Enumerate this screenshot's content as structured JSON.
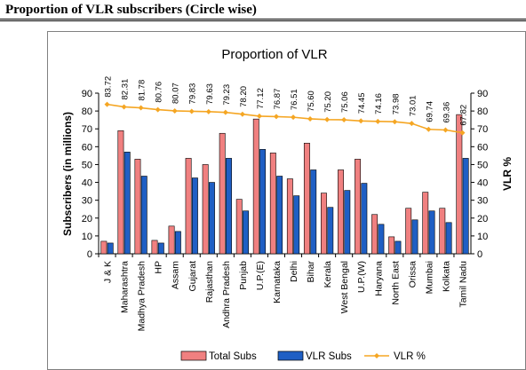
{
  "page": {
    "heading": "Proportion of VLR subscribers (Circle wise)"
  },
  "chart_data": {
    "type": "bar",
    "title": "Proportion of VLR",
    "ylabel": "Subscribers (in millions)",
    "y2label": "VLR %",
    "ylim": [
      0,
      90
    ],
    "y2lim": [
      0,
      90
    ],
    "yticks": [
      0,
      10,
      20,
      30,
      40,
      50,
      60,
      70,
      80,
      90
    ],
    "categories": [
      "J & K",
      "Maharashtra",
      "Madhya Pradesh",
      "HP",
      "Assam",
      "Gujarat",
      "Rajasthan",
      "Andhra Pradesh",
      "Punjab",
      "U.P.(E)",
      "Karnataka",
      "Delhi",
      "Bihar",
      "Kerala",
      "West Bengal",
      "U.P.(W)",
      "Haryana",
      "North East",
      "Orissa",
      "Mumbai",
      "Kolkata",
      "Tamil Nadu"
    ],
    "series": [
      {
        "name": "Total Subs",
        "kind": "bar",
        "color": "#f08080",
        "values": [
          7,
          69,
          53,
          7.5,
          15.5,
          53.5,
          50,
          67.5,
          30.5,
          75.5,
          56.5,
          42,
          62,
          34,
          47,
          53,
          22,
          9.5,
          25.5,
          34.5,
          25.5,
          78
        ]
      },
      {
        "name": "VLR Subs",
        "kind": "bar",
        "color": "#1f5fc4",
        "values": [
          6,
          57,
          43.5,
          6,
          12.5,
          42.5,
          40,
          53.5,
          24,
          58.5,
          43.5,
          32.5,
          47,
          26,
          35.5,
          39.5,
          16.5,
          7,
          19,
          24,
          17.5,
          53.5
        ]
      },
      {
        "name": "VLR %",
        "kind": "line",
        "color": "#f5a623",
        "values": [
          83.72,
          82.31,
          81.78,
          80.76,
          80.07,
          79.83,
          79.63,
          79.23,
          78.2,
          77.12,
          76.87,
          76.51,
          75.6,
          75.2,
          75.06,
          74.45,
          74.16,
          73.98,
          73.01,
          69.74,
          69.36,
          67.82
        ]
      }
    ],
    "data_labels": [
      "83.72",
      "82.31",
      "81.78",
      "80.76",
      "80.07",
      "79.83",
      "79.63",
      "79.23",
      "78.20",
      "77.12",
      "76.87",
      "76.51",
      "75.60",
      "75.20",
      "75.06",
      "74.45",
      "74.16",
      "73.98",
      "73.01",
      "69.74",
      "69.36",
      "67.82"
    ],
    "legend": {
      "position": "bottom",
      "items": [
        "Total Subs",
        "VLR Subs",
        "VLR %"
      ]
    },
    "grid": false
  }
}
